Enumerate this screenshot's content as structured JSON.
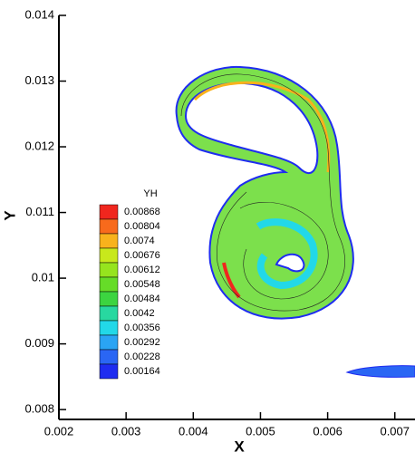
{
  "chart_data": {
    "type": "contour",
    "x_label": "X",
    "y_label": "Y",
    "xlim": [
      0.002,
      0.0073
    ],
    "ylim": [
      0.00785,
      0.014
    ],
    "xticks": [
      0.002,
      0.003,
      0.004,
      0.005,
      0.006,
      0.007
    ],
    "yticks": [
      0.008,
      0.009,
      0.01,
      0.011,
      0.012,
      0.013,
      0.014
    ],
    "legend": {
      "title": "YH",
      "levels": [
        0.00868,
        0.00804,
        0.0074,
        0.00676,
        0.00612,
        0.00548,
        0.00484,
        0.0042,
        0.00356,
        0.00292,
        0.00228,
        0.00164
      ],
      "colors": [
        "#f0261e",
        "#f86a1c",
        "#f8b21c",
        "#c8e81c",
        "#96e41e",
        "#66dc28",
        "#3cd440",
        "#28d8a0",
        "#22d8e8",
        "#2aa4f4",
        "#2a66f4",
        "#1e2cf0"
      ]
    }
  }
}
